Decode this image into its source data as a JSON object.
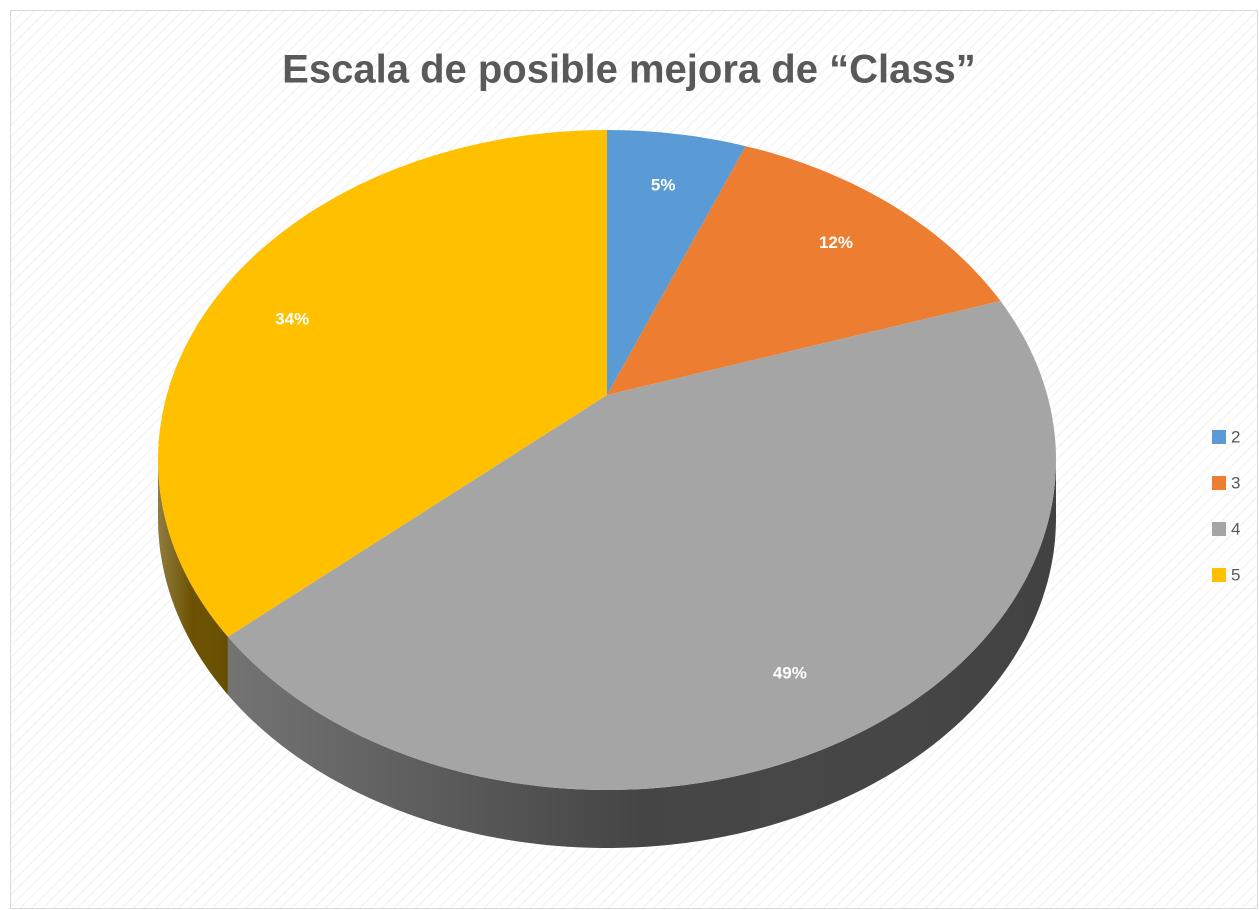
{
  "chart_data": {
    "type": "pie",
    "title": "Escala de posible mejora de “Class”",
    "categories": [
      "2",
      "3",
      "4",
      "5"
    ],
    "values": [
      5,
      12,
      49,
      34
    ],
    "value_labels": [
      "5%",
      "12%",
      "49%",
      "34%"
    ],
    "colors": [
      "#5b9bd5",
      "#ed7d31",
      "#a5a5a5",
      "#ffc000"
    ],
    "legend": "right"
  }
}
